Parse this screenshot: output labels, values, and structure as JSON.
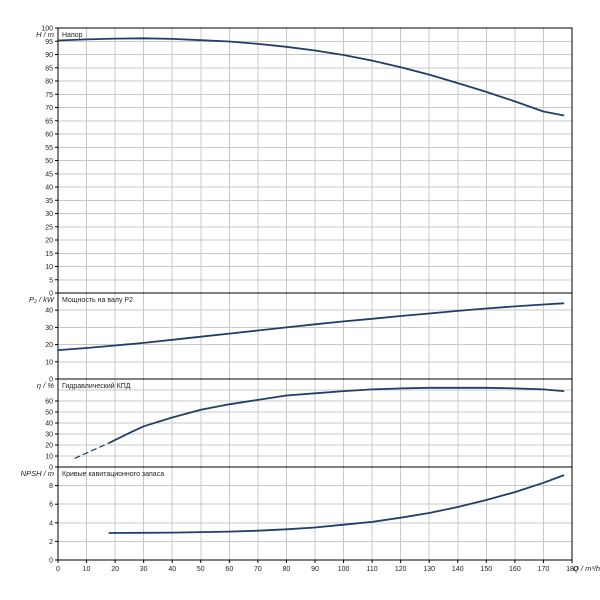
{
  "chart_data": [
    {
      "type": "line",
      "title": "Напор",
      "ylabel": "H / m",
      "xlim": [
        0,
        180
      ],
      "ylim": [
        0,
        100
      ],
      "ytick_step": 5,
      "yticks": [
        "0",
        "5",
        "10",
        "15",
        "20",
        "25",
        "30",
        "35",
        "40",
        "45",
        "50",
        "55",
        "60",
        "65",
        "70",
        "75",
        "80",
        "85",
        "90",
        "95",
        "100"
      ],
      "grid": true,
      "series": [
        {
          "x": [
            0,
            10,
            20,
            30,
            40,
            50,
            60,
            70,
            80,
            90,
            100,
            110,
            120,
            130,
            140,
            150,
            160,
            170,
            177
          ],
          "y": [
            95.3,
            95.7,
            96,
            96.1,
            95.9,
            95.4,
            94.9,
            94.0,
            92.9,
            91.5,
            89.8,
            87.7,
            85.2,
            82.4,
            79.2,
            75.9,
            72.3,
            68.5,
            67
          ]
        }
      ],
      "color": "#1f3f6a"
    },
    {
      "type": "line",
      "title": "Мощность на валу P2",
      "ylabel": "P₂ / kW",
      "xlim": [
        0,
        180
      ],
      "ylim": [
        0,
        50
      ],
      "ytick_step": 10,
      "yticks": [
        "0",
        "10",
        "20",
        "30",
        "40"
      ],
      "grid": true,
      "series": [
        {
          "x": [
            0,
            10,
            20,
            30,
            40,
            50,
            60,
            70,
            80,
            90,
            100,
            110,
            120,
            130,
            140,
            150,
            160,
            170,
            177
          ],
          "y": [
            16.8,
            18,
            19.5,
            21,
            22.8,
            24.6,
            26.4,
            28.2,
            30,
            31.8,
            33.5,
            35,
            36.6,
            38.1,
            39.6,
            41,
            42.2,
            43.3,
            44
          ]
        }
      ],
      "color": "#1f3f6a"
    },
    {
      "type": "line",
      "title": "Гидравлический КПД",
      "ylabel": "η / %",
      "xlim": [
        0,
        180
      ],
      "ylim": [
        0,
        80
      ],
      "ytick_step": 10,
      "yticks": [
        "0",
        "10",
        "20",
        "30",
        "40",
        "50",
        "60"
      ],
      "grid": true,
      "series": [
        {
          "x": [
            6,
            18
          ],
          "y": [
            8,
            22
          ],
          "style": "dashed"
        },
        {
          "x": [
            18,
            25,
            30,
            40,
            50,
            60,
            70,
            80,
            90,
            100,
            110,
            120,
            130,
            140,
            150,
            160,
            170,
            177
          ],
          "y": [
            22,
            31,
            37,
            45,
            52,
            57,
            61,
            65,
            67,
            69,
            70.5,
            71.5,
            72,
            72,
            72,
            71.5,
            70.5,
            69
          ]
        }
      ],
      "color": "#1f3f6a"
    },
    {
      "type": "line",
      "title": "Кривые кавитационного запаса",
      "ylabel": "NPSH / m",
      "xlabel": "Q / m³/h",
      "xlim": [
        0,
        180
      ],
      "ylim": [
        0,
        10
      ],
      "ytick_step": 2,
      "yticks": [
        "0",
        "2",
        "4",
        "6",
        "8"
      ],
      "xticks": [
        "0",
        "10",
        "20",
        "30",
        "40",
        "50",
        "60",
        "70",
        "80",
        "90",
        "100",
        "110",
        "120",
        "130",
        "140",
        "150",
        "160",
        "170",
        "180"
      ],
      "grid": true,
      "series": [
        {
          "x": [
            18,
            30,
            40,
            50,
            60,
            70,
            80,
            90,
            100,
            110,
            120,
            130,
            140,
            150,
            160,
            170,
            177
          ],
          "y": [
            2.9,
            2.92,
            2.95,
            3.0,
            3.05,
            3.15,
            3.3,
            3.5,
            3.8,
            4.1,
            4.55,
            5.05,
            5.7,
            6.45,
            7.3,
            8.3,
            9.1
          ]
        }
      ],
      "color": "#1f3f6a"
    }
  ]
}
